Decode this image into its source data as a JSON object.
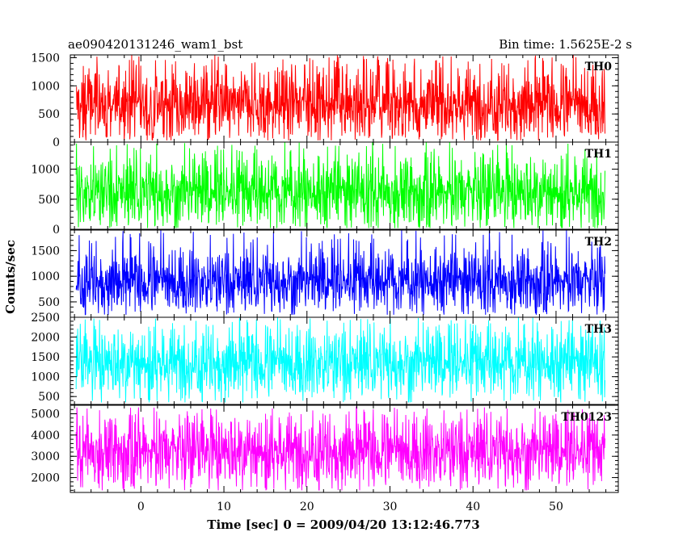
{
  "chart_data": {
    "type": "line",
    "title_left": "ae090420131246_wam1_bst",
    "title_right": "Bin time: 1.5625E-2 s",
    "xlabel": "Time [sec] 0 = 2009/04/20 13:12:46.773",
    "ylabel": "Counts/sec",
    "xlim": [
      -8.5,
      57.5
    ],
    "x_data_range": [
      -7.8,
      55.9
    ],
    "x_ticks": [
      0,
      10,
      20,
      30,
      40,
      50
    ],
    "x_tick_labels": [
      "0",
      "10",
      "20",
      "30",
      "40",
      "50"
    ],
    "panels": [
      {
        "name": "TH0",
        "color": "#ff0000",
        "ylim": [
          0,
          1550
        ],
        "y_ticks": [
          0,
          500,
          1000,
          1500
        ],
        "y_tick_labels": [
          "0",
          "500",
          "1000",
          "1500"
        ],
        "series_envelope": {
          "typical_low": 200,
          "typical_high": 1150,
          "min": 30,
          "max": 1550
        }
      },
      {
        "name": "TH1",
        "color": "#00ff00",
        "ylim": [
          0,
          1450
        ],
        "y_ticks": [
          0,
          500,
          1000
        ],
        "y_tick_labels": [
          "0",
          "500",
          "1000"
        ],
        "series_envelope": {
          "typical_low": 180,
          "typical_high": 1050,
          "min": 20,
          "max": 1450
        }
      },
      {
        "name": "TH2",
        "color": "#0000ff",
        "ylim": [
          200,
          1900
        ],
        "y_ticks": [
          500,
          1000,
          1500
        ],
        "y_tick_labels": [
          "500",
          "1000",
          "1500"
        ],
        "series_envelope": {
          "typical_low": 450,
          "typical_high": 1350,
          "min": 250,
          "max": 1900
        }
      },
      {
        "name": "TH3",
        "color": "#00ffff",
        "ylim": [
          300,
          2500
        ],
        "y_ticks": [
          500,
          1000,
          1500,
          2000,
          2500
        ],
        "y_tick_labels": [
          "500",
          "1000",
          "1500",
          "2000",
          "2500"
        ],
        "series_envelope": {
          "typical_low": 700,
          "typical_high": 2000,
          "min": 350,
          "max": 2500
        }
      },
      {
        "name": "TH0123",
        "color": "#ff00ff",
        "ylim": [
          1300,
          5400
        ],
        "y_ticks": [
          2000,
          3000,
          4000,
          5000
        ],
        "y_tick_labels": [
          "2000",
          "3000",
          "4000",
          "5000"
        ],
        "series_envelope": {
          "typical_low": 2000,
          "typical_high": 4500,
          "min": 1400,
          "max": 5300
        }
      }
    ]
  }
}
